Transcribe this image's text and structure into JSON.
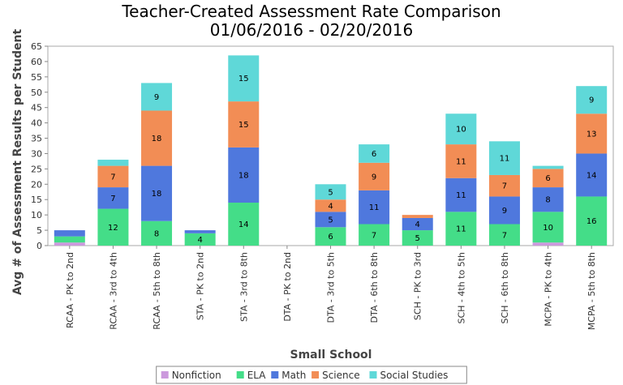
{
  "chart_data": {
    "type": "bar",
    "stacked": true,
    "title": "Teacher-Created Assessment Rate Comparison",
    "subtitle": "01/06/2016 - 02/20/2016",
    "xlabel": "Small School",
    "ylabel": "Avg # of Assessment Results per Student",
    "ylim": [
      0,
      65
    ],
    "yticks": [
      0,
      5,
      10,
      15,
      20,
      25,
      30,
      35,
      40,
      45,
      50,
      55,
      60,
      65
    ],
    "grid": false,
    "legend_position": "bottom",
    "categories": [
      "RCAA - PK to 2nd",
      "RCAA - 3rd to 4th",
      "RCAA - 5th to 8th",
      "STA - PK to 2nd",
      "STA - 3rd to 8th",
      "DTA - PK to 2nd",
      "DTA - 3rd to 5th",
      "DTA - 6th to 8th",
      "SCH - PK to 3rd",
      "SCH - 4th to 5th",
      "SCH - 6th to 8th",
      "MCPA - PK to 4th",
      "MCPA - 5th to 8th"
    ],
    "series": [
      {
        "name": "Nonfiction",
        "color": "#cc99dd",
        "values": [
          1,
          0,
          0,
          0,
          0,
          0,
          0,
          0,
          0,
          0,
          0,
          1,
          0
        ]
      },
      {
        "name": "ELA",
        "color": "#44dd88",
        "values": [
          2,
          12,
          8,
          4,
          14,
          0,
          6,
          7,
          5,
          11,
          7,
          10,
          16
        ]
      },
      {
        "name": "Math",
        "color": "#4f78dd",
        "values": [
          2,
          7,
          18,
          1,
          18,
          0,
          5,
          11,
          4,
          11,
          9,
          8,
          14
        ]
      },
      {
        "name": "Science",
        "color": "#f28d55",
        "values": [
          0,
          7,
          18,
          0,
          15,
          0,
          4,
          9,
          1,
          11,
          7,
          6,
          13
        ]
      },
      {
        "name": "Social Studies",
        "color": "#5fd8d8",
        "values": [
          0,
          2,
          9,
          0,
          15,
          0,
          5,
          6,
          0,
          10,
          11,
          1,
          9
        ]
      }
    ],
    "labels_shown": [
      [
        null,
        null,
        null,
        null,
        null,
        null,
        null,
        null,
        null,
        null,
        null,
        null,
        null
      ],
      [
        null,
        "12",
        "8",
        "4",
        "14",
        null,
        "6",
        "7",
        "5",
        "11",
        "7",
        "10",
        "16"
      ],
      [
        null,
        "7",
        "18",
        null,
        "18",
        null,
        "5",
        "11",
        "4",
        "11",
        "9",
        "8",
        "14"
      ],
      [
        null,
        "7",
        "18",
        null,
        "15",
        null,
        "4",
        "9",
        null,
        "11",
        "7",
        "6",
        "13"
      ],
      [
        null,
        null,
        "9",
        null,
        "15",
        null,
        "5",
        "6",
        null,
        "10",
        "11",
        null,
        "9"
      ]
    ]
  }
}
